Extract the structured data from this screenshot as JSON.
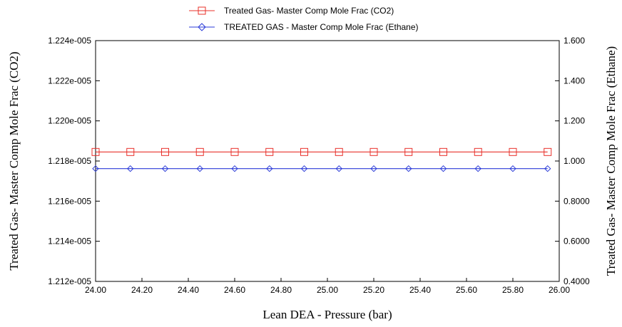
{
  "chart_data": {
    "type": "line",
    "xlabel": "Lean DEA - Pressure (bar)",
    "ylabel_left": "Treated Gas- Master Comp Mole Frac (CO2)",
    "ylabel_right": "Treated Gas- Master Comp Mole Frac (Ethane)",
    "xlim": [
      24.0,
      26.0
    ],
    "ylim_left": [
      1.212e-05,
      1.224e-05
    ],
    "ylim_right": [
      0.4,
      1.6
    ],
    "x_ticks": [
      24.0,
      24.2,
      24.4,
      24.6,
      24.8,
      25.0,
      25.2,
      25.4,
      25.6,
      25.8,
      26.0
    ],
    "x_tick_labels": [
      "24.00",
      "24.20",
      "24.40",
      "24.60",
      "24.80",
      "25.00",
      "25.20",
      "25.40",
      "25.60",
      "25.80",
      "26.00"
    ],
    "y_left_ticks": [
      1.212e-05,
      1.214e-05,
      1.216e-05,
      1.218e-05,
      1.22e-05,
      1.222e-05,
      1.224e-05
    ],
    "y_left_tick_labels": [
      "1.212e-005",
      "1.214e-005",
      "1.216e-005",
      "1.218e-005",
      "1.220e-005",
      "1.222e-005",
      "1.224e-005"
    ],
    "y_right_ticks": [
      0.4,
      0.6,
      0.8,
      1.0,
      1.2,
      1.4,
      1.6
    ],
    "y_right_tick_labels": [
      "0.4000",
      "0.6000",
      "0.8000",
      "1.000",
      "1.200",
      "1.400",
      "1.600"
    ],
    "grid": false,
    "legend_position": "top-center",
    "series": [
      {
        "name": "Treated Gas- Master Comp Mole Frac (CO2)",
        "axis": "left",
        "color": "#e8302a",
        "marker": "square",
        "x": [
          24.0,
          24.15,
          24.3,
          24.45,
          24.6,
          24.75,
          24.9,
          25.05,
          25.2,
          25.35,
          25.5,
          25.65,
          25.8,
          25.95
        ],
        "values": [
          1.21845e-05,
          1.21845e-05,
          1.21845e-05,
          1.21845e-05,
          1.21845e-05,
          1.21845e-05,
          1.21845e-05,
          1.21845e-05,
          1.21845e-05,
          1.21845e-05,
          1.21845e-05,
          1.21845e-05,
          1.21845e-05,
          1.21845e-05
        ]
      },
      {
        "name": "TREATED GAS - Master Comp Mole Frac (Ethane)",
        "axis": "right",
        "color": "#2b3bd8",
        "marker": "diamond",
        "x": [
          24.0,
          24.15,
          24.3,
          24.45,
          24.6,
          24.75,
          24.9,
          25.05,
          25.2,
          25.35,
          25.5,
          25.65,
          25.8,
          25.95
        ],
        "values": [
          0.962,
          0.962,
          0.962,
          0.962,
          0.962,
          0.962,
          0.962,
          0.962,
          0.962,
          0.962,
          0.962,
          0.962,
          0.962,
          0.962
        ]
      }
    ]
  }
}
